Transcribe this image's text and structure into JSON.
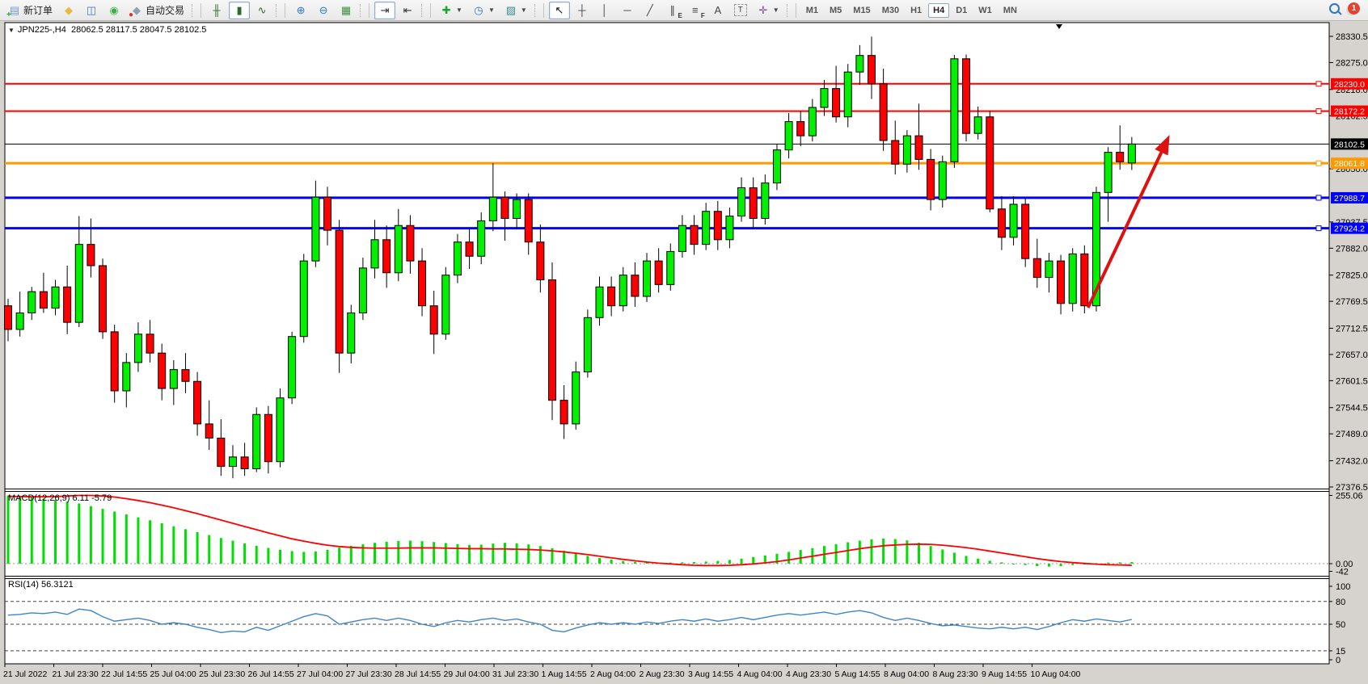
{
  "toolbar": {
    "groups": [
      {
        "name": "trade",
        "items": [
          {
            "name": "new-order",
            "icon": "new-order-icon",
            "glyph": "▤",
            "gc": "#6f9bd1",
            "overlay": "+",
            "oc": "#17a82b",
            "label": "新订单"
          },
          {
            "name": "chart-gallery",
            "icon": "diamond-icon",
            "glyph": "◆",
            "gc": "#e8b93e"
          },
          {
            "name": "market-watch",
            "icon": "chart-window-icon",
            "glyph": "◫",
            "gc": "#4a72b8"
          },
          {
            "name": "signals",
            "icon": "broadcast-icon",
            "glyph": "◉",
            "gc": "#3fae49"
          },
          {
            "name": "autotrading",
            "icon": "autotrading-icon",
            "glyph": "◆",
            "gc": "#8fa0b0",
            "overlay": "●",
            "oc": "#e03131",
            "label": "自动交易"
          }
        ]
      },
      {
        "name": "chart-style",
        "items": [
          {
            "name": "bar-chart-style",
            "icon": "bar-chart-icon",
            "glyph": "╫",
            "gc": "#2e6b2e"
          },
          {
            "name": "candlestick-style",
            "icon": "candlestick-icon",
            "glyph": "▮",
            "gc": "#2e6b2e",
            "pressed": true
          },
          {
            "name": "line-chart-style",
            "icon": "line-chart-icon",
            "glyph": "∿",
            "gc": "#2e6b2e"
          }
        ]
      },
      {
        "name": "zoom",
        "items": [
          {
            "name": "zoom-in",
            "icon": "zoom-in-icon",
            "glyph": "⊕",
            "gc": "#2f76c0"
          },
          {
            "name": "zoom-out",
            "icon": "zoom-out-icon",
            "glyph": "⊖",
            "gc": "#2f76c0"
          },
          {
            "name": "tile-windows",
            "icon": "tile-windows-icon",
            "glyph": "▦",
            "gc": "#3f8f3f"
          }
        ]
      },
      {
        "name": "scroll",
        "items": [
          {
            "name": "auto-scroll",
            "icon": "auto-scroll-icon",
            "glyph": "⇥",
            "gc": "#333333",
            "pressed": true
          },
          {
            "name": "chart-shift",
            "icon": "chart-shift-icon",
            "glyph": "⇤",
            "gc": "#333333"
          }
        ]
      },
      {
        "name": "insert-menus",
        "items": [
          {
            "name": "indicators",
            "icon": "indicators-icon",
            "glyph": "✚",
            "gc": "#17a82b",
            "dropdown": true
          },
          {
            "name": "periods",
            "icon": "clock-icon",
            "glyph": "◷",
            "gc": "#2f76c0",
            "dropdown": true
          },
          {
            "name": "templates",
            "icon": "templates-icon",
            "glyph": "▨",
            "gc": "#3a8f8f",
            "dropdown": true
          }
        ]
      },
      {
        "name": "drawing",
        "items": [
          {
            "name": "cursor",
            "icon": "cursor-icon",
            "glyph": "↖",
            "gc": "#111111",
            "pressed": true
          },
          {
            "name": "crosshair",
            "icon": "crosshair-icon",
            "glyph": "┼",
            "gc": "#444444"
          },
          {
            "name": "vertical-line",
            "icon": "vertical-line-icon",
            "glyph": "│",
            "gc": "#444444"
          },
          {
            "name": "horizontal-line",
            "icon": "horizontal-line-icon",
            "glyph": "─",
            "gc": "#444444"
          },
          {
            "name": "trend-line",
            "icon": "trendline-icon",
            "glyph": "╱",
            "gc": "#444444"
          },
          {
            "name": "equidistant-channel",
            "icon": "channel-icon",
            "glyph": "∥",
            "gc": "#444444",
            "sub": "E"
          },
          {
            "name": "fibonacci",
            "icon": "fibonacci-icon",
            "glyph": "≡",
            "gc": "#444444",
            "sub": "F"
          },
          {
            "name": "text",
            "icon": "text-icon",
            "glyph": "A",
            "gc": "#444444"
          },
          {
            "name": "text-label",
            "icon": "text-label-icon",
            "glyph": "T",
            "gc": "#444444",
            "boxed": true
          },
          {
            "name": "arrow-objects",
            "icon": "arrows-icon",
            "glyph": "✛",
            "gc": "#7a4fa0",
            "dropdown": true
          }
        ]
      },
      {
        "name": "timeframes",
        "items": []
      }
    ],
    "timeframes": {
      "labels": [
        "M1",
        "M5",
        "M15",
        "M30",
        "H1",
        "H4",
        "D1",
        "W1",
        "MN"
      ],
      "active": "H4"
    },
    "notification_count": "1"
  },
  "chart": {
    "title": {
      "caret": "▼",
      "symbol_period": "JPN225-,H4",
      "ohlc": "28062.5 28117.5 28047.5 28102.5"
    },
    "hlines": [
      {
        "price": 28230.0,
        "label": "28230.0",
        "color": "#ff0000",
        "w": 2,
        "marker": true
      },
      {
        "price": 28172.2,
        "label": "28172.2",
        "color": "#ff0000",
        "w": 2,
        "marker": true
      },
      {
        "price": 28102.5,
        "label": "28102.5",
        "color": "#000000",
        "w": 1,
        "marker": false
      },
      {
        "price": 28061.8,
        "label": "28061.8",
        "color": "#ff9900",
        "w": 3,
        "marker": true
      },
      {
        "price": 27988.7,
        "label": "27988.7",
        "color": "#0000ff",
        "w": 3,
        "marker": true
      },
      {
        "price": 27924.2,
        "label": "27924.2",
        "color": "#0000ff",
        "w": 3,
        "marker": true
      }
    ],
    "price_ticks": [
      "28330.5",
      "28275.0",
      "28218.0",
      "28162.5",
      "28050.0",
      "27937.5",
      "27882.0",
      "27825.0",
      "27769.5",
      "27712.5",
      "27657.0",
      "27601.5",
      "27544.5",
      "27489.0",
      "27432.0",
      "27376.5"
    ],
    "time_labels": [
      "21 Jul 2022",
      "21 Jul 23:30",
      "22 Jul 14:55",
      "25 Jul 04:00",
      "25 Jul 23:30",
      "26 Jul 14:55",
      "27 Jul 04:00",
      "27 Jul 23:30",
      "28 Jul 14:55",
      "29 Jul 04:00",
      "31 Jul 23:30",
      "1 Aug 14:55",
      "2 Aug 04:00",
      "2 Aug 23:30",
      "3 Aug 14:55",
      "4 Aug 04:00",
      "4 Aug 23:30",
      "5 Aug 14:55",
      "8 Aug 04:00",
      "8 Aug 23:30",
      "9 Aug 14:55",
      "10 Aug 04:00"
    ],
    "arrow": {
      "from_i": 91.3,
      "from_p": 27756,
      "to_i": 98.2,
      "to_p": 28122,
      "color": "#dd1111"
    },
    "colors": {
      "up": "#00f000",
      "down": "#ff0000",
      "wick": "#000000",
      "macd_hist": "#00e000",
      "macd_signal": "#ff0000",
      "rsi_line": "#3d85c8"
    }
  },
  "chart_data": {
    "type": "candlestick",
    "symbol": "JPN225-",
    "period": "H4",
    "ylim": [
      27376.5,
      28330.5
    ],
    "candles": [
      [
        27760,
        27775,
        27685,
        27710
      ],
      [
        27710,
        27790,
        27695,
        27745
      ],
      [
        27745,
        27800,
        27730,
        27790
      ],
      [
        27790,
        27830,
        27745,
        27755
      ],
      [
        27755,
        27815,
        27740,
        27800
      ],
      [
        27800,
        27845,
        27700,
        27725
      ],
      [
        27725,
        27950,
        27715,
        27890
      ],
      [
        27890,
        27945,
        27820,
        27845
      ],
      [
        27845,
        27860,
        27690,
        27705
      ],
      [
        27705,
        27720,
        27555,
        27580
      ],
      [
        27580,
        27660,
        27545,
        27640
      ],
      [
        27640,
        27725,
        27620,
        27700
      ],
      [
        27700,
        27730,
        27640,
        27660
      ],
      [
        27660,
        27680,
        27560,
        27585
      ],
      [
        27585,
        27645,
        27550,
        27625
      ],
      [
        27625,
        27660,
        27575,
        27600
      ],
      [
        27600,
        27620,
        27485,
        27510
      ],
      [
        27510,
        27560,
        27455,
        27480
      ],
      [
        27480,
        27520,
        27400,
        27420
      ],
      [
        27420,
        27465,
        27395,
        27440
      ],
      [
        27440,
        27470,
        27400,
        27415
      ],
      [
        27415,
        27545,
        27408,
        27530
      ],
      [
        27530,
        27548,
        27405,
        27430
      ],
      [
        27430,
        27585,
        27418,
        27565
      ],
      [
        27565,
        27705,
        27552,
        27695
      ],
      [
        27695,
        27870,
        27682,
        27855
      ],
      [
        27855,
        28025,
        27842,
        27990
      ],
      [
        27990,
        28012,
        27888,
        27920
      ],
      [
        27920,
        27942,
        27618,
        27660
      ],
      [
        27660,
        27762,
        27638,
        27745
      ],
      [
        27745,
        27862,
        27730,
        27840
      ],
      [
        27840,
        27942,
        27818,
        27900
      ],
      [
        27900,
        27930,
        27798,
        27830
      ],
      [
        27830,
        27965,
        27812,
        27930
      ],
      [
        27930,
        27952,
        27828,
        27855
      ],
      [
        27855,
        27882,
        27738,
        27760
      ],
      [
        27760,
        27792,
        27658,
        27700
      ],
      [
        27700,
        27842,
        27688,
        27825
      ],
      [
        27825,
        27912,
        27808,
        27895
      ],
      [
        27895,
        27922,
        27838,
        27865
      ],
      [
        27865,
        27958,
        27848,
        27940
      ],
      [
        27940,
        28062,
        27918,
        27990
      ],
      [
        27990,
        28002,
        27898,
        27945
      ],
      [
        27945,
        27998,
        27922,
        27985
      ],
      [
        27985,
        27998,
        27868,
        27895
      ],
      [
        27895,
        27932,
        27788,
        27815
      ],
      [
        27815,
        27852,
        27518,
        27560
      ],
      [
        27560,
        27592,
        27478,
        27510
      ],
      [
        27510,
        27642,
        27498,
        27620
      ],
      [
        27620,
        27752,
        27608,
        27735
      ],
      [
        27735,
        27822,
        27718,
        27800
      ],
      [
        27800,
        27822,
        27738,
        27760
      ],
      [
        27760,
        27842,
        27748,
        27825
      ],
      [
        27825,
        27852,
        27758,
        27780
      ],
      [
        27780,
        27872,
        27768,
        27855
      ],
      [
        27855,
        27882,
        27788,
        27805
      ],
      [
        27805,
        27892,
        27792,
        27875
      ],
      [
        27875,
        27952,
        27862,
        27930
      ],
      [
        27930,
        27952,
        27868,
        27890
      ],
      [
        27890,
        27978,
        27878,
        27960
      ],
      [
        27960,
        27982,
        27878,
        27900
      ],
      [
        27900,
        27968,
        27882,
        27950
      ],
      [
        27950,
        28032,
        27938,
        28010
      ],
      [
        28010,
        28032,
        27922,
        27945
      ],
      [
        27945,
        28038,
        27932,
        28020
      ],
      [
        28020,
        28102,
        28005,
        28090
      ],
      [
        28090,
        28168,
        28072,
        28150
      ],
      [
        28150,
        28172,
        28098,
        28120
      ],
      [
        28120,
        28198,
        28108,
        28180
      ],
      [
        28180,
        28238,
        28162,
        28220
      ],
      [
        28220,
        28268,
        28148,
        28160
      ],
      [
        28160,
        28272,
        28138,
        28255
      ],
      [
        28255,
        28312,
        28228,
        28290
      ],
      [
        28290,
        28330,
        28198,
        28230
      ],
      [
        28230,
        28262,
        28088,
        28110
      ],
      [
        28110,
        28152,
        28038,
        28060
      ],
      [
        28060,
        28132,
        28042,
        28120
      ],
      [
        28120,
        28188,
        28048,
        28070
      ],
      [
        28070,
        28092,
        27962,
        27985
      ],
      [
        27985,
        28078,
        27968,
        28065
      ],
      [
        28065,
        28291,
        28052,
        28283
      ],
      [
        28283,
        28292,
        28108,
        28125
      ],
      [
        28125,
        28182,
        28112,
        28160
      ],
      [
        28160,
        28172,
        27958,
        27965
      ],
      [
        27965,
        27992,
        27878,
        27905
      ],
      [
        27905,
        27992,
        27888,
        27975
      ],
      [
        27975,
        27988,
        27842,
        27860
      ],
      [
        27860,
        27902,
        27798,
        27820
      ],
      [
        27820,
        27872,
        27788,
        27855
      ],
      [
        27855,
        27868,
        27742,
        27765
      ],
      [
        27765,
        27882,
        27748,
        27870
      ],
      [
        27870,
        27888,
        27744,
        27760
      ],
      [
        27760,
        28012,
        27748,
        28000
      ],
      [
        28000,
        28096,
        27938,
        28085
      ],
      [
        28085,
        28142,
        28048,
        28065
      ],
      [
        28062.5,
        28117.5,
        28047.5,
        28102.5
      ]
    ],
    "macd": {
      "label": "MACD(12,26,9)",
      "values": "6.11 -5.79",
      "axis_max": "255.06",
      "axis_zero": "0.00",
      "axis_min": "-42",
      "range": [
        -42,
        255.06
      ],
      "hist": [
        255,
        252,
        248,
        243,
        238,
        232,
        225,
        215,
        205,
        195,
        184,
        173,
        162,
        151,
        140,
        129,
        118,
        107,
        96,
        86,
        76,
        67,
        59,
        52,
        47,
        44,
        46,
        52,
        60,
        67,
        73,
        78,
        82,
        85,
        86,
        84,
        81,
        77,
        73,
        70,
        71,
        75,
        78,
        76,
        72,
        66,
        58,
        48,
        38,
        29,
        21,
        15,
        10,
        7,
        5,
        4,
        4,
        5,
        6,
        8,
        10,
        14,
        19,
        25,
        31,
        37,
        44,
        51,
        58,
        66,
        73,
        80,
        86,
        91,
        94,
        92,
        87,
        78,
        66,
        53,
        41,
        29,
        19,
        11,
        5,
        0,
        -5,
        -9,
        -11,
        -9,
        -5,
        -1,
        2,
        4,
        5,
        6
      ],
      "signal": [
        252,
        251,
        250,
        250,
        251,
        253,
        255,
        255,
        253,
        249,
        243,
        236,
        228,
        219,
        209,
        198,
        187,
        175,
        163,
        151,
        139,
        127,
        115,
        104,
        93,
        84,
        76,
        69,
        64,
        61,
        59,
        58,
        58,
        58,
        59,
        59,
        59,
        58,
        57,
        56,
        56,
        55,
        55,
        54,
        53,
        51,
        48,
        44,
        39,
        34,
        28,
        22,
        16,
        11,
        6,
        2,
        -1,
        -4,
        -6,
        -7,
        -7,
        -6,
        -4,
        -1,
        3,
        8,
        14,
        21,
        28,
        35,
        42,
        49,
        56,
        62,
        67,
        70,
        72,
        73,
        72,
        69,
        65,
        60,
        54,
        47,
        40,
        33,
        26,
        19,
        13,
        8,
        4,
        1,
        -2,
        -4,
        -5,
        -6
      ]
    },
    "rsi": {
      "label": "RSI(14)",
      "value": "56.3121",
      "axis_labels": [
        "100",
        "80",
        "50",
        "15",
        "0"
      ],
      "levels": [
        80,
        50,
        15
      ],
      "range": [
        0,
        100
      ],
      "series": [
        62,
        63,
        65,
        64,
        66,
        63,
        70,
        68,
        60,
        54,
        56,
        58,
        55,
        50,
        52,
        50,
        46,
        43,
        39,
        41,
        40,
        46,
        42,
        48,
        54,
        60,
        64,
        61,
        50,
        53,
        56,
        58,
        55,
        58,
        55,
        50,
        47,
        52,
        55,
        53,
        56,
        58,
        55,
        57,
        53,
        50,
        42,
        40,
        45,
        49,
        52,
        50,
        52,
        50,
        53,
        51,
        54,
        56,
        54,
        57,
        54,
        56,
        59,
        56,
        59,
        62,
        64,
        62,
        64,
        66,
        63,
        66,
        68,
        65,
        59,
        55,
        58,
        55,
        51,
        48,
        49,
        47,
        45,
        44,
        46,
        44,
        46,
        43,
        47,
        52,
        56,
        54,
        57,
        55,
        53,
        56.31
      ]
    }
  }
}
